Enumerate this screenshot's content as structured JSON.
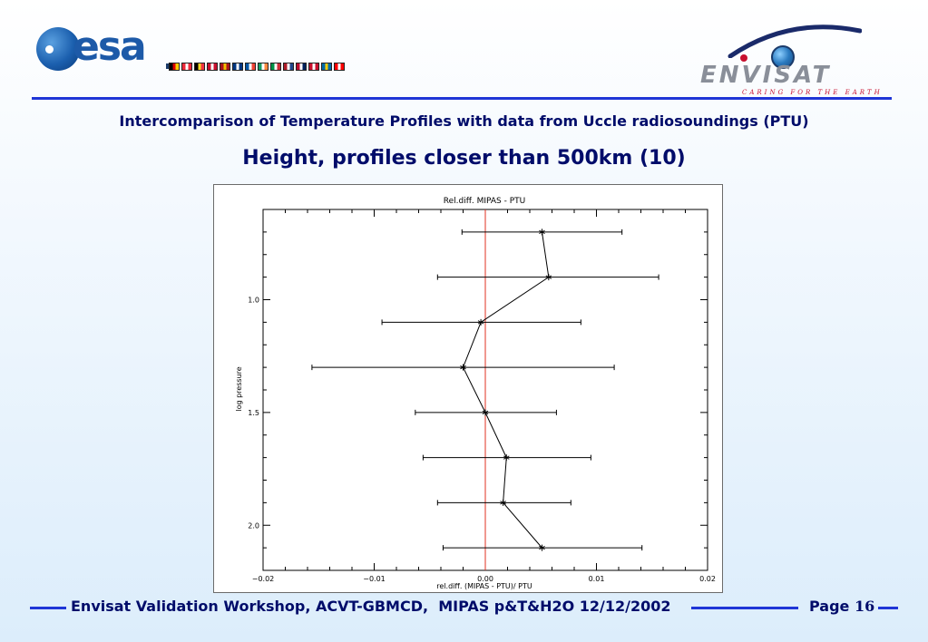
{
  "header": {
    "esa_logo_text": "esa",
    "envisat_logo_text": "ENVISAT",
    "envisat_tagline": "CARING FOR THE EARTH",
    "flag_colors": [
      [
        "#000000",
        "#dd0000",
        "#ffce00"
      ],
      [
        "#ed2939",
        "#ffffff",
        "#ed2939"
      ],
      [
        "#000000",
        "#fdda24",
        "#ef3340"
      ],
      [
        "#c8102e",
        "#ffffff",
        "#c8102e"
      ],
      [
        "#aa151b",
        "#f1bf00",
        "#aa151b"
      ],
      [
        "#003580",
        "#ffffff",
        "#003580"
      ],
      [
        "#0055a4",
        "#ffffff",
        "#ef4135"
      ],
      [
        "#169b62",
        "#ffffff",
        "#ff883e"
      ],
      [
        "#009246",
        "#ffffff",
        "#ce2b37"
      ],
      [
        "#ae1c28",
        "#ffffff",
        "#21468b"
      ],
      [
        "#ba0c2f",
        "#ffffff",
        "#00205b"
      ],
      [
        "#c8102e",
        "#ffffff",
        "#c8102e"
      ],
      [
        "#006aa7",
        "#fecc00",
        "#006aa7"
      ],
      [
        "#ff0000",
        "#ffffff",
        "#ff0000"
      ]
    ]
  },
  "subtitle": "Intercomparison of Temperature Profiles with data from Uccle radiosoundings (PTU)",
  "title": "Height, profiles closer than 500km (10)",
  "chart_data": {
    "type": "line",
    "title": "Rel.diff. MIPAS - PTU",
    "xlabel": "rel.diff. (MIPAS - PTU)/ PTU",
    "ylabel": "log pressure",
    "xlim": [
      -0.02,
      0.02
    ],
    "ylim": [
      2.2,
      0.6
    ],
    "x_ticks": [
      -0.02,
      -0.01,
      0.0,
      0.01,
      0.02
    ],
    "x_tick_labels": [
      "−0.02",
      "−0.01",
      "0.00",
      "0.01",
      "0.02"
    ],
    "y_ticks": [
      1.0,
      1.5,
      2.0
    ],
    "y_tick_labels": [
      "1.0",
      "1.5",
      "2.0"
    ],
    "reference_line": {
      "x": 0.0,
      "color": "#e03020"
    },
    "series": [
      {
        "marker": "asterisk",
        "color": "#000000",
        "points": [
          {
            "x": 0.0051,
            "y": 0.7,
            "xerr_low": -0.0021,
            "xerr_high": 0.0123
          },
          {
            "x": 0.0057,
            "y": 0.9,
            "xerr_low": -0.0043,
            "xerr_high": 0.0156
          },
          {
            "x": -0.0004,
            "y": 1.1,
            "xerr_low": -0.0093,
            "xerr_high": 0.0086
          },
          {
            "x": -0.002,
            "y": 1.3,
            "xerr_low": -0.0156,
            "xerr_high": 0.0116
          },
          {
            "x": 0.0,
            "y": 1.5,
            "xerr_low": -0.0063,
            "xerr_high": 0.0064
          },
          {
            "x": 0.0019,
            "y": 1.7,
            "xerr_low": -0.0056,
            "xerr_high": 0.0095
          },
          {
            "x": 0.0016,
            "y": 1.9,
            "xerr_low": -0.0043,
            "xerr_high": 0.0077
          },
          {
            "x": 0.0051,
            "y": 2.1,
            "xerr_low": -0.0038,
            "xerr_high": 0.0141
          }
        ]
      }
    ],
    "grid": false
  },
  "footer": {
    "text": "Envisat Validation Workshop, ACVT-GBMCD,  MIPAS p&T&H2O 12/12/2002",
    "page_label": "Page",
    "page_number": "16"
  }
}
